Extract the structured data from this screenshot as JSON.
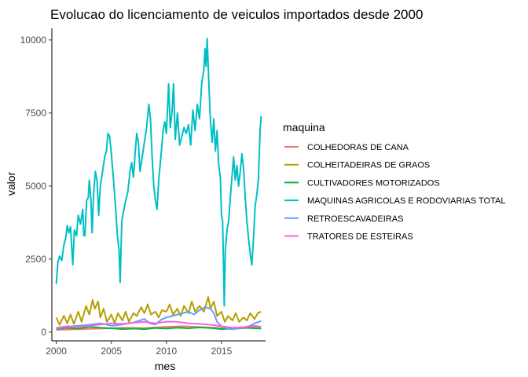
{
  "chart_data": {
    "type": "line",
    "title": "Evolucao do licenciamento de veiculos importados desde 2000",
    "xlabel": "mes",
    "ylabel": "valor",
    "xlim": [
      1999.6,
      2019.0
    ],
    "ylim": [
      -300,
      10400
    ],
    "x_ticks": [
      2000,
      2005,
      2010,
      2015
    ],
    "x_tick_labels": [
      "2000",
      "2005",
      "2010",
      "2015"
    ],
    "y_ticks": [
      0,
      2500,
      5000,
      7500,
      10000
    ],
    "y_tick_labels": [
      "0",
      "2500",
      "5000",
      "7500",
      "10000"
    ],
    "grid": false,
    "legend": {
      "title": "maquina",
      "position": "right"
    },
    "series": [
      {
        "name": "COLHEDORAS DE CANA",
        "color": "#F8766D",
        "points": [
          [
            2000.0,
            80
          ],
          [
            2002.0,
            100
          ],
          [
            2004.0,
            120
          ],
          [
            2006.0,
            150
          ],
          [
            2008.0,
            140
          ],
          [
            2010.0,
            180
          ],
          [
            2011.5,
            200
          ],
          [
            2013.0,
            170
          ],
          [
            2014.5,
            150
          ],
          [
            2016.0,
            110
          ],
          [
            2017.0,
            130
          ],
          [
            2018.0,
            180
          ],
          [
            2018.5,
            150
          ]
        ]
      },
      {
        "name": "COLHEITADEIRAS DE GRAOS",
        "color": "#B79F00",
        "points": [
          [
            2000.0,
            500
          ],
          [
            2000.3,
            250
          ],
          [
            2000.7,
            560
          ],
          [
            2001.0,
            300
          ],
          [
            2001.3,
            600
          ],
          [
            2001.6,
            280
          ],
          [
            2002.0,
            700
          ],
          [
            2002.3,
            350
          ],
          [
            2002.7,
            900
          ],
          [
            2003.0,
            600
          ],
          [
            2003.3,
            1100
          ],
          [
            2003.5,
            800
          ],
          [
            2003.8,
            1050
          ],
          [
            2004.0,
            500
          ],
          [
            2004.3,
            800
          ],
          [
            2004.6,
            350
          ],
          [
            2005.0,
            600
          ],
          [
            2005.3,
            300
          ],
          [
            2005.6,
            650
          ],
          [
            2006.0,
            400
          ],
          [
            2006.3,
            700
          ],
          [
            2006.6,
            350
          ],
          [
            2007.0,
            650
          ],
          [
            2007.3,
            550
          ],
          [
            2007.7,
            850
          ],
          [
            2008.0,
            650
          ],
          [
            2008.3,
            950
          ],
          [
            2008.6,
            600
          ],
          [
            2009.0,
            700
          ],
          [
            2009.3,
            500
          ],
          [
            2009.6,
            750
          ],
          [
            2010.0,
            700
          ],
          [
            2010.3,
            950
          ],
          [
            2010.6,
            600
          ],
          [
            2011.0,
            800
          ],
          [
            2011.3,
            550
          ],
          [
            2011.6,
            900
          ],
          [
            2012.0,
            650
          ],
          [
            2012.3,
            1050
          ],
          [
            2012.6,
            700
          ],
          [
            2013.0,
            900
          ],
          [
            2013.4,
            700
          ],
          [
            2013.8,
            1200
          ],
          [
            2014.0,
            800
          ],
          [
            2014.3,
            1050
          ],
          [
            2014.6,
            550
          ],
          [
            2015.0,
            700
          ],
          [
            2015.3,
            350
          ],
          [
            2015.6,
            550
          ],
          [
            2016.0,
            400
          ],
          [
            2016.3,
            650
          ],
          [
            2016.6,
            350
          ],
          [
            2017.0,
            500
          ],
          [
            2017.3,
            400
          ],
          [
            2017.6,
            650
          ],
          [
            2018.0,
            450
          ],
          [
            2018.3,
            650
          ],
          [
            2018.6,
            700
          ]
        ]
      },
      {
        "name": "CULTIVADORES MOTORIZADOS",
        "color": "#00BA38",
        "points": [
          [
            2000.0,
            100
          ],
          [
            2001.0,
            150
          ],
          [
            2002.0,
            120
          ],
          [
            2003.0,
            180
          ],
          [
            2004.0,
            150
          ],
          [
            2005.0,
            130
          ],
          [
            2006.0,
            100
          ],
          [
            2007.0,
            120
          ],
          [
            2008.0,
            100
          ],
          [
            2009.0,
            140
          ],
          [
            2010.0,
            120
          ],
          [
            2011.0,
            150
          ],
          [
            2012.0,
            130
          ],
          [
            2013.0,
            160
          ],
          [
            2014.0,
            140
          ],
          [
            2015.0,
            100
          ],
          [
            2016.0,
            120
          ],
          [
            2017.0,
            150
          ],
          [
            2018.0,
            130
          ],
          [
            2018.6,
            120
          ]
        ]
      },
      {
        "name": "MAQUINAS AGRICOLAS E RODOVIARIAS TOTAL",
        "color": "#00BFC4",
        "points": [
          [
            2000.0,
            1650
          ],
          [
            2000.15,
            2400
          ],
          [
            2000.3,
            2600
          ],
          [
            2000.5,
            2450
          ],
          [
            2000.7,
            3000
          ],
          [
            2000.85,
            3200
          ],
          [
            2001.0,
            3650
          ],
          [
            2001.15,
            3400
          ],
          [
            2001.3,
            3600
          ],
          [
            2001.5,
            2300
          ],
          [
            2001.65,
            3500
          ],
          [
            2001.85,
            3300
          ],
          [
            2002.0,
            4000
          ],
          [
            2002.2,
            3700
          ],
          [
            2002.4,
            4200
          ],
          [
            2002.5,
            3300
          ],
          [
            2002.6,
            3300
          ],
          [
            2002.75,
            4500
          ],
          [
            2002.9,
            4600
          ],
          [
            2003.0,
            5200
          ],
          [
            2003.15,
            4500
          ],
          [
            2003.25,
            3400
          ],
          [
            2003.4,
            4800
          ],
          [
            2003.55,
            5500
          ],
          [
            2003.7,
            5200
          ],
          [
            2003.85,
            4000
          ],
          [
            2004.0,
            5000
          ],
          [
            2004.2,
            5500
          ],
          [
            2004.4,
            6000
          ],
          [
            2004.55,
            6200
          ],
          [
            2004.7,
            6800
          ],
          [
            2004.85,
            6700
          ],
          [
            2005.0,
            6100
          ],
          [
            2005.2,
            5200
          ],
          [
            2005.4,
            4200
          ],
          [
            2005.55,
            3300
          ],
          [
            2005.7,
            2800
          ],
          [
            2005.8,
            1700
          ],
          [
            2005.95,
            3800
          ],
          [
            2006.1,
            4100
          ],
          [
            2006.3,
            4500
          ],
          [
            2006.5,
            4800
          ],
          [
            2006.7,
            5500
          ],
          [
            2006.85,
            5800
          ],
          [
            2007.0,
            5300
          ],
          [
            2007.15,
            6100
          ],
          [
            2007.3,
            6800
          ],
          [
            2007.45,
            6500
          ],
          [
            2007.6,
            5500
          ],
          [
            2007.8,
            6000
          ],
          [
            2008.0,
            6500
          ],
          [
            2008.2,
            7000
          ],
          [
            2008.4,
            7800
          ],
          [
            2008.55,
            7300
          ],
          [
            2008.7,
            6000
          ],
          [
            2008.85,
            5000
          ],
          [
            2009.0,
            4500
          ],
          [
            2009.15,
            4200
          ],
          [
            2009.3,
            5200
          ],
          [
            2009.5,
            6000
          ],
          [
            2009.7,
            6900
          ],
          [
            2009.85,
            7200
          ],
          [
            2010.0,
            6800
          ],
          [
            2010.2,
            8500
          ],
          [
            2010.35,
            7000
          ],
          [
            2010.5,
            7500
          ],
          [
            2010.65,
            8500
          ],
          [
            2010.8,
            6600
          ],
          [
            2011.0,
            7500
          ],
          [
            2011.2,
            6400
          ],
          [
            2011.4,
            6700
          ],
          [
            2011.6,
            7000
          ],
          [
            2011.8,
            6800
          ],
          [
            2012.0,
            7100
          ],
          [
            2012.2,
            6400
          ],
          [
            2012.4,
            7600
          ],
          [
            2012.6,
            6900
          ],
          [
            2012.8,
            7800
          ],
          [
            2013.0,
            7300
          ],
          [
            2013.2,
            8500
          ],
          [
            2013.4,
            9000
          ],
          [
            2013.5,
            9700
          ],
          [
            2013.6,
            9100
          ],
          [
            2013.7,
            10050
          ],
          [
            2013.85,
            8500
          ],
          [
            2014.0,
            7200
          ],
          [
            2014.15,
            6500
          ],
          [
            2014.3,
            7300
          ],
          [
            2014.45,
            6200
          ],
          [
            2014.6,
            6900
          ],
          [
            2014.75,
            5700
          ],
          [
            2014.9,
            5300
          ],
          [
            2015.0,
            4000
          ],
          [
            2015.1,
            3800
          ],
          [
            2015.2,
            2000
          ],
          [
            2015.25,
            900
          ],
          [
            2015.35,
            2800
          ],
          [
            2015.5,
            3500
          ],
          [
            2015.65,
            3800
          ],
          [
            2015.8,
            4600
          ],
          [
            2015.95,
            5300
          ],
          [
            2016.1,
            6000
          ],
          [
            2016.25,
            5200
          ],
          [
            2016.4,
            5700
          ],
          [
            2016.55,
            5000
          ],
          [
            2016.7,
            5500
          ],
          [
            2016.85,
            6100
          ],
          [
            2017.0,
            5600
          ],
          [
            2017.15,
            4600
          ],
          [
            2017.3,
            3800
          ],
          [
            2017.45,
            3200
          ],
          [
            2017.6,
            2700
          ],
          [
            2017.75,
            2300
          ],
          [
            2017.9,
            3200
          ],
          [
            2018.05,
            4300
          ],
          [
            2018.2,
            4700
          ],
          [
            2018.35,
            5200
          ],
          [
            2018.5,
            6900
          ],
          [
            2018.6,
            7400
          ]
        ]
      },
      {
        "name": "RETROESCAVADEIRAS",
        "color": "#619CFF",
        "points": [
          [
            2000.0,
            120
          ],
          [
            2001.0,
            180
          ],
          [
            2002.0,
            220
          ],
          [
            2003.0,
            250
          ],
          [
            2004.0,
            300
          ],
          [
            2005.0,
            220
          ],
          [
            2006.0,
            260
          ],
          [
            2007.0,
            330
          ],
          [
            2008.0,
            450
          ],
          [
            2008.5,
            300
          ],
          [
            2009.0,
            260
          ],
          [
            2009.5,
            420
          ],
          [
            2010.0,
            500
          ],
          [
            2010.5,
            550
          ],
          [
            2011.0,
            600
          ],
          [
            2011.5,
            650
          ],
          [
            2012.0,
            700
          ],
          [
            2012.5,
            600
          ],
          [
            2013.0,
            750
          ],
          [
            2013.5,
            850
          ],
          [
            2014.0,
            800
          ],
          [
            2014.3,
            650
          ],
          [
            2014.6,
            350
          ],
          [
            2015.0,
            200
          ],
          [
            2015.5,
            120
          ],
          [
            2016.0,
            100
          ],
          [
            2016.5,
            130
          ],
          [
            2017.0,
            150
          ],
          [
            2017.5,
            200
          ],
          [
            2018.0,
            300
          ],
          [
            2018.6,
            380
          ]
        ]
      },
      {
        "name": "TRATORES DE ESTEIRAS",
        "color": "#F564E3",
        "points": [
          [
            2000.0,
            150
          ],
          [
            2001.0,
            200
          ],
          [
            2002.0,
            180
          ],
          [
            2003.0,
            220
          ],
          [
            2004.0,
            260
          ],
          [
            2005.0,
            300
          ],
          [
            2006.0,
            280
          ],
          [
            2007.0,
            320
          ],
          [
            2008.0,
            350
          ],
          [
            2009.0,
            300
          ],
          [
            2010.0,
            360
          ],
          [
            2011.0,
            350
          ],
          [
            2012.0,
            300
          ],
          [
            2013.0,
            280
          ],
          [
            2014.0,
            250
          ],
          [
            2015.0,
            200
          ],
          [
            2016.0,
            150
          ],
          [
            2017.0,
            170
          ],
          [
            2018.0,
            220
          ],
          [
            2018.6,
            180
          ]
        ]
      }
    ]
  }
}
